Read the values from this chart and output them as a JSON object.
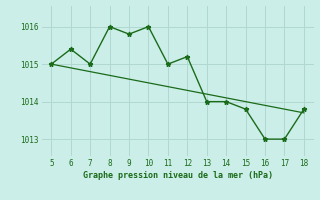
{
  "x": [
    5,
    6,
    7,
    8,
    9,
    10,
    11,
    12,
    13,
    14,
    15,
    16,
    17,
    18
  ],
  "y": [
    1015.0,
    1015.4,
    1015.0,
    1016.0,
    1015.8,
    1016.0,
    1015.0,
    1015.2,
    1014.0,
    1014.0,
    1013.8,
    1013.0,
    1013.0,
    1013.8
  ],
  "trend_x": [
    5,
    18
  ],
  "trend_y": [
    1015.0,
    1013.7
  ],
  "line_color": "#1a6b1a",
  "bg_color": "#cceee8",
  "grid_color": "#b0d8d0",
  "xlabel": "Graphe pression niveau de la mer (hPa)",
  "xlim": [
    4.5,
    18.5
  ],
  "ylim": [
    1012.55,
    1016.55
  ],
  "yticks": [
    1013,
    1014,
    1015,
    1016
  ],
  "xticks": [
    5,
    6,
    7,
    8,
    9,
    10,
    11,
    12,
    13,
    14,
    15,
    16,
    17,
    18
  ],
  "marker": "*",
  "markersize": 3.5,
  "linewidth": 1.0,
  "trend_linewidth": 0.9,
  "tick_fontsize": 5.5,
  "xlabel_fontsize": 6.0
}
